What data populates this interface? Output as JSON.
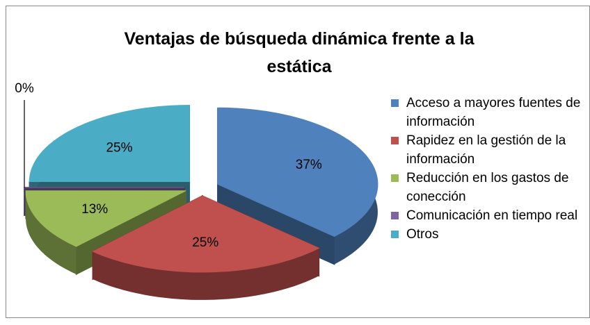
{
  "chart_data": {
    "type": "pie3d",
    "title": "Ventajas de búsqueda dinámica frente a la estática",
    "categories": [
      "Acceso a mayores fuentes de información",
      "Rapidez en la gestión de la información",
      "Reducción en los gastos de conección",
      "Comunicación en tiempo real",
      "Otros"
    ],
    "values": [
      37,
      25,
      13,
      0,
      25
    ],
    "value_labels": [
      "37%",
      "25%",
      "13%",
      "0%",
      "25%"
    ],
    "colors": [
      "#4F81BD",
      "#C0504D",
      "#9BBB59",
      "#8064A2",
      "#4BACC6"
    ],
    "legend": "right"
  }
}
